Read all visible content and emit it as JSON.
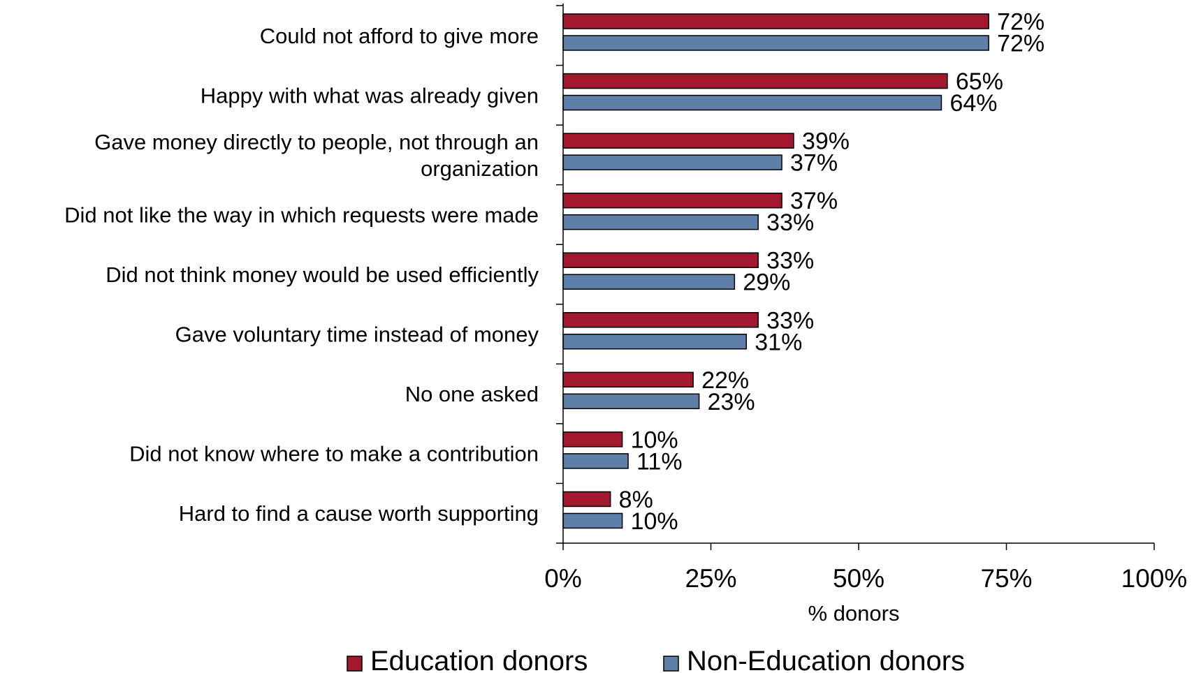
{
  "chart_data": {
    "type": "bar",
    "orientation": "horizontal",
    "categories": [
      [
        "Could not afford to give more"
      ],
      [
        "Happy with what was already given"
      ],
      [
        "Gave money directly to people, not through an",
        "organization"
      ],
      [
        "Did not like the way in which requests were made"
      ],
      [
        "Did not think money would be used efficiently"
      ],
      [
        "Gave voluntary time instead of money"
      ],
      [
        "No one asked"
      ],
      [
        "Did not know where to make a contribution"
      ],
      [
        "Hard to find a cause worth supporting"
      ]
    ],
    "series": [
      {
        "name": "Education donors",
        "color": "#A3172F",
        "values": [
          72,
          65,
          39,
          37,
          33,
          33,
          22,
          10,
          8
        ],
        "labels": [
          "72%",
          "65%",
          "39%",
          "37%",
          "33%",
          "33%",
          "22%",
          "10%",
          "8%"
        ]
      },
      {
        "name": "Non-Education donors",
        "color": "#5E7FA8",
        "values": [
          72,
          64,
          37,
          33,
          29,
          31,
          23,
          11,
          10
        ],
        "labels": [
          "72%",
          "64%",
          "37%",
          "33%",
          "29%",
          "31%",
          "23%",
          "11%",
          "10%"
        ]
      }
    ],
    "xlabel": "% donors",
    "xlim": [
      0,
      100
    ],
    "xticks": [
      0,
      25,
      50,
      75,
      100
    ],
    "xtick_labels": [
      "0%",
      "25%",
      "50%",
      "75%",
      "100%"
    ],
    "grid": false,
    "legend_position": "bottom"
  }
}
